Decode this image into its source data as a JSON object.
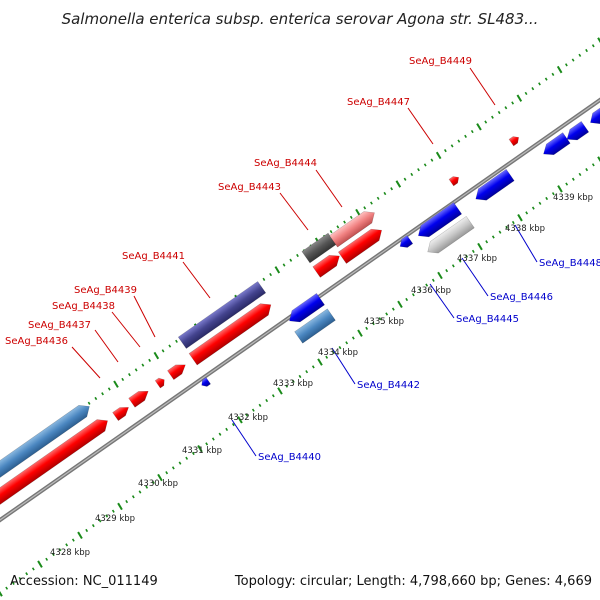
{
  "title": "Salmonella enterica subsp. enterica serovar Agona str. SL483...",
  "footer": {
    "accession": "Accession: NC_011149",
    "summary": "Topology: circular; Length: 4,798,660 bp; Genes: 4,669"
  },
  "colors": {
    "forward_gene": "#ff0000",
    "reverse_gene": "#0000ee",
    "forward_label": "#cc0000",
    "reverse_label": "#0000cc",
    "backbone": "#888888",
    "tick": "#1a8a1a",
    "steelblue": "#4a86c0",
    "slate": "#4a4a9a",
    "pink": "#f08080",
    "grey_dark": "#555555",
    "grey_light": "#c8c8c8"
  },
  "scale_labels": [
    "4328 kbp",
    "4329 kbp",
    "4330 kbp",
    "4331 kbp",
    "4332 kbp",
    "4333 kbp",
    "4334 kbp",
    "4335 kbp",
    "4336 kbp",
    "4337 kbp",
    "4338 kbp",
    "4339 kbp"
  ],
  "forward_gene_labels": [
    "SeAg_B4436",
    "SeAg_B4437",
    "SeAg_B4438",
    "SeAg_B4439",
    "SeAg_B4441",
    "SeAg_B4443",
    "SeAg_B4444",
    "SeAg_B4447",
    "SeAg_B4449"
  ],
  "reverse_gene_labels": [
    "SeAg_B4440",
    "SeAg_B4442",
    "SeAg_B4445",
    "SeAg_B4446",
    "SeAg_B4448"
  ]
}
